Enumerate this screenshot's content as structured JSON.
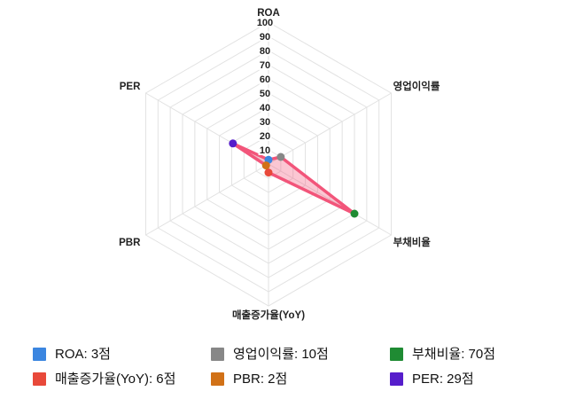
{
  "chart_data": {
    "type": "radar",
    "axes": [
      "ROA",
      "영업이익률",
      "부채비율",
      "매출증가율(YoY)",
      "PBR",
      "PER"
    ],
    "ids": [
      "roa",
      "operating-margin",
      "debt-ratio",
      "revenue-growth-yoy",
      "pbr",
      "per"
    ],
    "values": [
      3,
      10,
      70,
      6,
      2,
      29
    ],
    "unit": "점",
    "scale": {
      "min": 0,
      "max": 100,
      "ticks": [
        10,
        20,
        30,
        40,
        50,
        60,
        70,
        80,
        90,
        100
      ]
    },
    "point_colors": [
      "#3b86e0",
      "#878787",
      "#1f8b33",
      "#e8493a",
      "#d17117",
      "#561dcb"
    ],
    "colors": {
      "fill": "rgba(242,85,122,0.33)",
      "stroke": "#f2557a",
      "grid": "#e2e2e2",
      "tick_text": "#222222",
      "axis_text": "#222222"
    },
    "grid": "on",
    "legend_position": "bottom"
  },
  "legend": {
    "items": [
      {
        "label": "ROA: 3점",
        "color": "#3b86e0"
      },
      {
        "label": "영업이익률: 10점",
        "color": "#878787"
      },
      {
        "label": "부채비율: 70점",
        "color": "#1f8b33"
      },
      {
        "label": "매출증가율(YoY): 6점",
        "color": "#e8493a"
      },
      {
        "label": "PBR: 2점",
        "color": "#d17117"
      },
      {
        "label": "PER: 29점",
        "color": "#561dcb"
      }
    ]
  }
}
